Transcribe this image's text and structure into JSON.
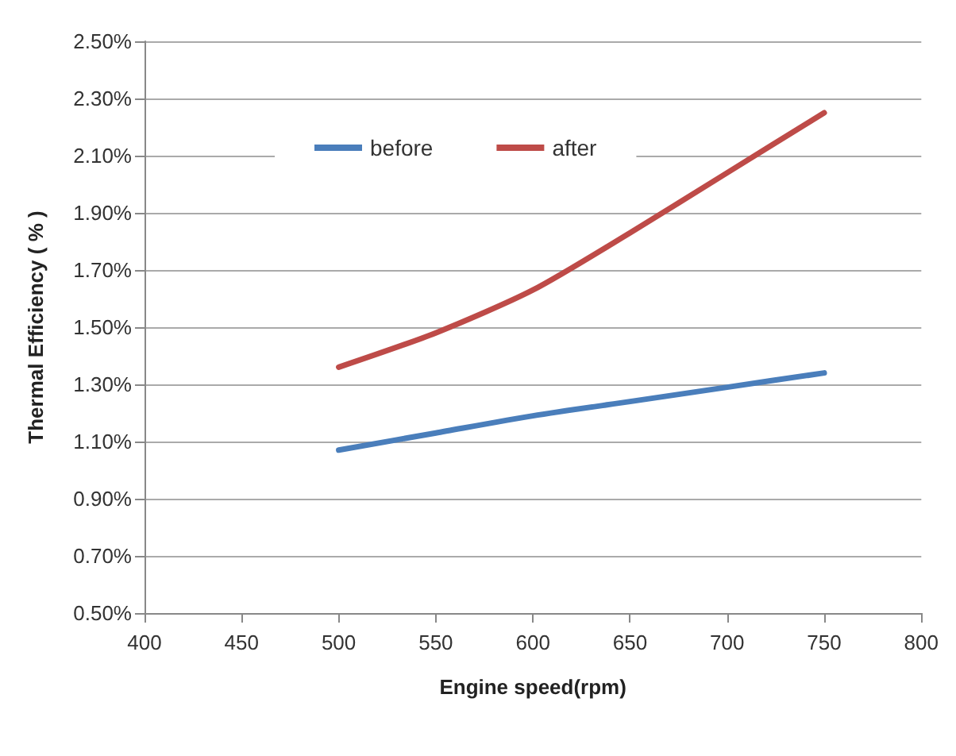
{
  "chart_data": {
    "type": "line",
    "xlabel": "Engine speed(rpm)",
    "ylabel": "Thermal Efficiency ( % )",
    "x": [
      500,
      550,
      600,
      650,
      700,
      750
    ],
    "series": [
      {
        "name": "before",
        "color": "#4a7ebb",
        "values": [
          1.07,
          1.13,
          1.19,
          1.24,
          1.29,
          1.34
        ]
      },
      {
        "name": "after",
        "color": "#be4b48",
        "values": [
          1.36,
          1.48,
          1.63,
          1.83,
          2.04,
          2.25
        ]
      }
    ],
    "xlim": [
      400,
      800
    ],
    "xticks": [
      400,
      450,
      500,
      550,
      600,
      650,
      700,
      750,
      800
    ],
    "ylim": [
      0.5,
      2.5
    ],
    "yticks": [
      {
        "value": 0.5,
        "label": "0.50%"
      },
      {
        "value": 0.7,
        "label": "0.70%"
      },
      {
        "value": 0.9,
        "label": "0.90%"
      },
      {
        "value": 1.1,
        "label": "1.10%"
      },
      {
        "value": 1.3,
        "label": "1.30%"
      },
      {
        "value": 1.5,
        "label": "1.50%"
      },
      {
        "value": 1.7,
        "label": "1.70%"
      },
      {
        "value": 1.9,
        "label": "1.90%"
      },
      {
        "value": 2.1,
        "label": "2.10%"
      },
      {
        "value": 2.3,
        "label": "2.30%"
      },
      {
        "value": 2.5,
        "label": "2.50%"
      }
    ],
    "grid": "y",
    "legend": "top left",
    "marker": "none",
    "line_style": "solid"
  }
}
